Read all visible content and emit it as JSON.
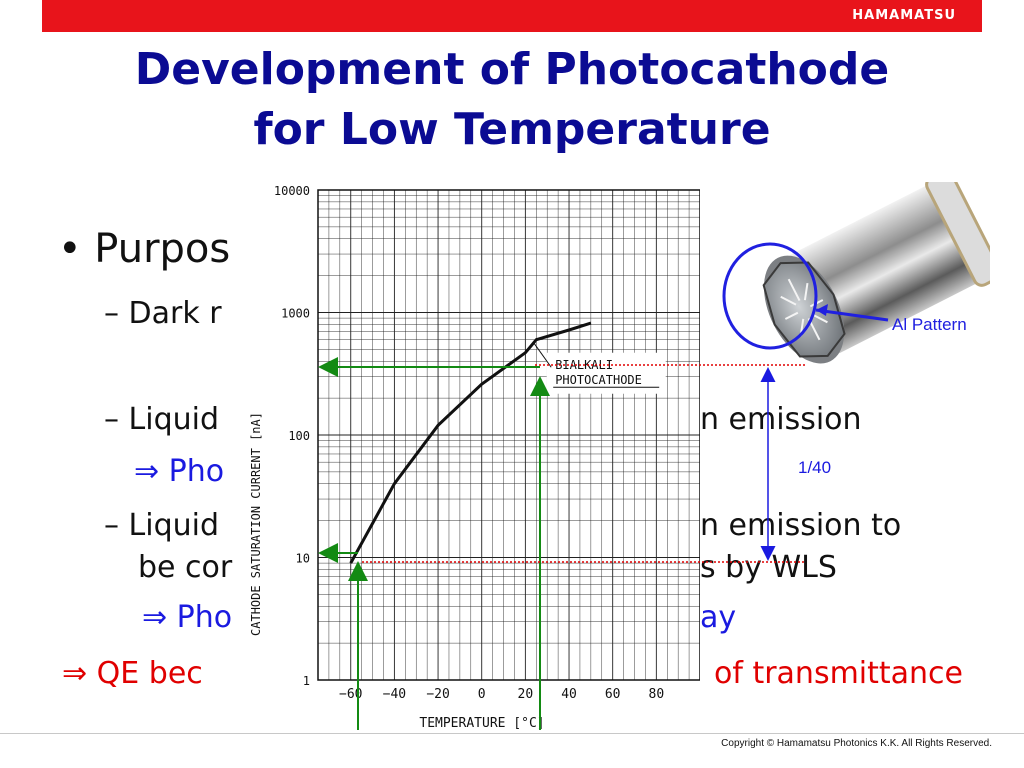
{
  "header": {
    "brand": "HAMAMATSU"
  },
  "title": {
    "line1": "Development of Photocathode",
    "line2": "for Low Temperature"
  },
  "bullets": {
    "purpose": "• Purpos",
    "dark": "– Dark r",
    "liquid1": "– Liquid",
    "liquid1_end": "n emission",
    "pho1": "⇒ Pho",
    "liquid2": "– Liquid",
    "liquid2_end": "n emission to",
    "be_cor": "be cor",
    "by_wls": "s by WLS",
    "pho2": "⇒ Pho",
    "ay": "ay",
    "qe": "⇒ QE bec",
    "transmittance": "of transmittance"
  },
  "annotations": {
    "ratio": "1/40",
    "al_pattern": "Al Pattern"
  },
  "footer": {
    "copyright": "Copyright © Hamamatsu Photonics K.K.   All Rights Reserved."
  },
  "colors": {
    "accent_red": "#e8141b",
    "title_blue": "#0b0b93",
    "arrow_green": "#138a13",
    "dotted_red": "#e00000",
    "callout_blue": "#1a1ae0"
  },
  "chart_data": {
    "type": "line",
    "xlabel": "TEMPERATURE [°C]",
    "ylabel": "CATHODE SATURATION CURRENT [nA]",
    "xlim": [
      -75,
      100
    ],
    "ylim": [
      1,
      10000
    ],
    "yscale": "log",
    "xticks": [
      "−60",
      "−40",
      "−20",
      "0",
      "20",
      "40",
      "60",
      "80"
    ],
    "yticks": [
      "10000",
      "1000",
      "100",
      "10",
      "1"
    ],
    "grid": true,
    "callout": [
      "BIALKALI",
      "PHOTOCATHODE"
    ],
    "series": [
      {
        "x": [
          -60,
          -40,
          -20,
          0,
          20,
          25,
          40,
          50
        ],
        "y": [
          9,
          40,
          120,
          260,
          470,
          600,
          720,
          820
        ]
      }
    ]
  }
}
